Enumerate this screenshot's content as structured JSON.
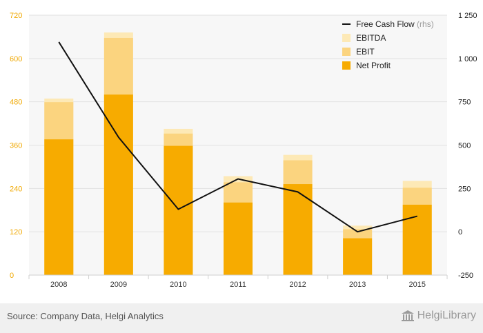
{
  "chart_data": {
    "type": "bar",
    "categories": [
      "2008",
      "2009",
      "2010",
      "2011",
      "2012",
      "2013",
      "2015"
    ],
    "series": [
      {
        "name": "EBITDA",
        "kind": "stacked-bar",
        "axis": "left",
        "values": [
          489,
          672,
          405,
          274,
          333,
          137,
          261
        ],
        "color": "#fde9b6"
      },
      {
        "name": "EBIT",
        "kind": "stacked-bar",
        "axis": "left",
        "values": [
          479,
          657,
          392,
          257,
          318,
          127,
          242
        ],
        "color": "#fbd47f"
      },
      {
        "name": "Net Profit",
        "kind": "stacked-bar",
        "axis": "left",
        "values": [
          376,
          500,
          358,
          201,
          252,
          102,
          195
        ],
        "color": "#f7ab00"
      },
      {
        "name": "Free Cash Flow",
        "kind": "line",
        "axis": "right",
        "values": [
          1095,
          545,
          130,
          305,
          230,
          0,
          90
        ],
        "color": "#111111"
      }
    ],
    "y_left": {
      "min": 0,
      "max": 720,
      "ticks": [
        "0",
        "120",
        "240",
        "360",
        "480",
        "600",
        "720"
      ],
      "tick_values": [
        0,
        120,
        240,
        360,
        480,
        600,
        720
      ],
      "color": "#f0a800"
    },
    "y_right": {
      "min": -250,
      "max": 1250,
      "ticks": [
        "-250",
        "0",
        "250",
        "500",
        "750",
        "1 000",
        "1 250"
      ],
      "tick_values": [
        -250,
        0,
        250,
        500,
        750,
        1000,
        1250
      ]
    },
    "legend": {
      "placement": "top-right",
      "items": [
        {
          "label": "Free Cash Flow",
          "suffix": "(rhs)",
          "swatch": "line",
          "color": "#111111"
        },
        {
          "label": "EBITDA",
          "suffix": "",
          "swatch": "box",
          "color": "#fde9b6"
        },
        {
          "label": "EBIT",
          "suffix": "",
          "swatch": "box",
          "color": "#fbd47f"
        },
        {
          "label": "Net Profit",
          "suffix": "",
          "swatch": "box",
          "color": "#f7ab00"
        }
      ]
    },
    "grid": true,
    "title": "",
    "xlabel": "",
    "ylabel": ""
  },
  "footer": {
    "source": "Source: Company Data, Helgi Analytics",
    "brand": "HelgiLibrary"
  }
}
